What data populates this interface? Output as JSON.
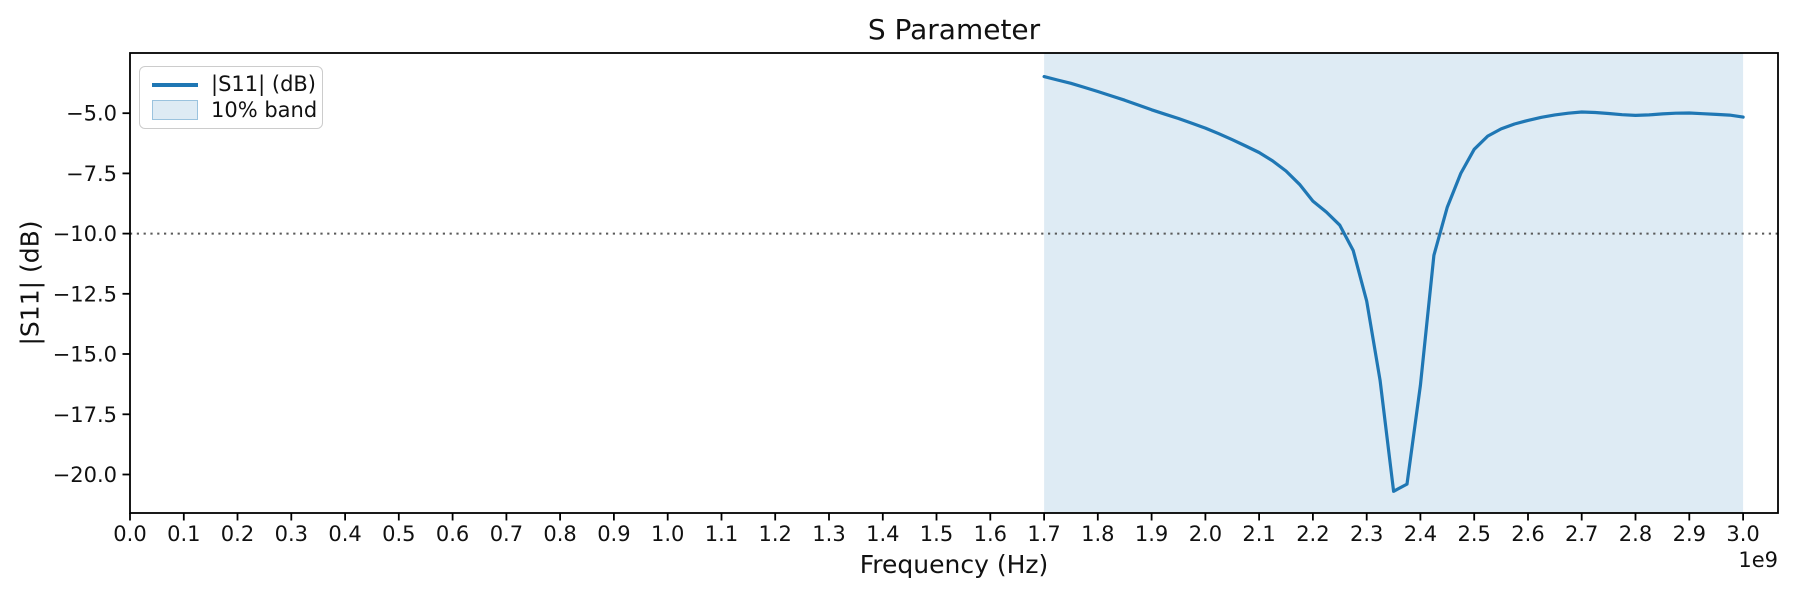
{
  "figure": {
    "title": "S Parameter",
    "xlabel": "Frequency (Hz)",
    "ylabel": "|S11| (dB)",
    "offset_label": "1e9"
  },
  "legend": {
    "items": [
      {
        "label": "|S11| (dB)",
        "type": "line"
      },
      {
        "label": "10% band",
        "type": "patch"
      }
    ]
  },
  "chart_data": {
    "type": "line",
    "title": "S Parameter",
    "xlabel": "Frequency (Hz)",
    "ylabel": "|S11| (dB)",
    "x_unit_multiplier": "1e9",
    "grid": false,
    "legend_position": "upper-left",
    "xlim_ghz": [
      0,
      3.065
    ],
    "ylim_db": [
      -21.6,
      -2.5
    ],
    "x_ticks_ghz": [
      0.0,
      0.1,
      0.2,
      0.3,
      0.4,
      0.5,
      0.6,
      0.7,
      0.8,
      0.9,
      1.0,
      1.1,
      1.2,
      1.3,
      1.4,
      1.5,
      1.6,
      1.7,
      1.8,
      1.9,
      2.0,
      2.1,
      2.2,
      2.3,
      2.4,
      2.5,
      2.6,
      2.7,
      2.8,
      2.9,
      3.0
    ],
    "x_tick_labels": [
      "0.0",
      "0.1",
      "0.2",
      "0.3",
      "0.4",
      "0.5",
      "0.6",
      "0.7",
      "0.8",
      "0.9",
      "1.0",
      "1.1",
      "1.2",
      "1.3",
      "1.4",
      "1.5",
      "1.6",
      "1.7",
      "1.8",
      "1.9",
      "2.0",
      "2.1",
      "2.2",
      "2.3",
      "2.4",
      "2.5",
      "2.6",
      "2.7",
      "2.8",
      "2.9",
      "3.0"
    ],
    "y_ticks_db": [
      -5.0,
      -7.5,
      -10.0,
      -12.5,
      -15.0,
      -17.5,
      -20.0
    ],
    "y_tick_labels": [
      "−5.0",
      "−7.5",
      "−10.0",
      "−12.5",
      "−15.0",
      "−17.5",
      "−20.0"
    ],
    "series": [
      {
        "name": "|S11| (dB)",
        "color": "#1f77b4",
        "x_ghz": [
          1.7,
          1.725,
          1.75,
          1.775,
          1.8,
          1.825,
          1.85,
          1.875,
          1.9,
          1.925,
          1.95,
          1.975,
          2.0,
          2.025,
          2.05,
          2.075,
          2.1,
          2.125,
          2.15,
          2.175,
          2.2,
          2.225,
          2.25,
          2.275,
          2.3,
          2.325,
          2.35,
          2.375,
          2.4,
          2.425,
          2.45,
          2.475,
          2.5,
          2.525,
          2.55,
          2.575,
          2.6,
          2.625,
          2.65,
          2.675,
          2.7,
          2.725,
          2.75,
          2.775,
          2.8,
          2.825,
          2.85,
          2.875,
          2.9,
          2.925,
          2.95,
          2.975,
          3.0
        ],
        "y_db": [
          -3.48,
          -3.62,
          -3.76,
          -3.93,
          -4.1,
          -4.28,
          -4.46,
          -4.66,
          -4.86,
          -5.04,
          -5.22,
          -5.42,
          -5.62,
          -5.85,
          -6.1,
          -6.36,
          -6.63,
          -6.98,
          -7.4,
          -7.95,
          -8.65,
          -9.1,
          -9.65,
          -10.7,
          -12.8,
          -16.1,
          -20.7,
          -20.4,
          -16.3,
          -10.9,
          -8.9,
          -7.5,
          -6.5,
          -5.95,
          -5.65,
          -5.45,
          -5.3,
          -5.17,
          -5.07,
          -5.0,
          -4.95,
          -4.97,
          -5.01,
          -5.06,
          -5.09,
          -5.07,
          -5.03,
          -5.0,
          -4.99,
          -5.02,
          -5.05,
          -5.08,
          -5.16
        ]
      }
    ],
    "band": {
      "label": "10% band",
      "x_start_ghz": 1.7,
      "x_end_ghz": 3.0,
      "fill_color": "rgba(31,119,180,0.15)"
    },
    "threshold_line": {
      "y_db": -10,
      "style": "dotted",
      "color": "#595959"
    },
    "colors": {
      "line": "#1f77b4",
      "band_fill": "rgba(31,119,180,0.15)",
      "spine": "#000000",
      "text": "#111111",
      "legend_border": "#cccccc"
    }
  }
}
